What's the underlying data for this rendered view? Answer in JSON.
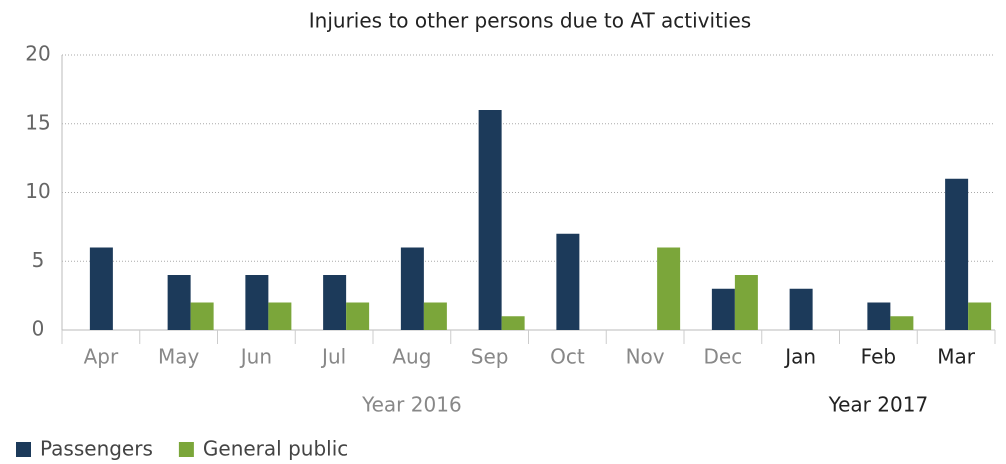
{
  "chart_data": {
    "type": "bar",
    "title": "Injuries to other persons due to AT activities",
    "categories": [
      "Apr",
      "May",
      "Jun",
      "Jul",
      "Aug",
      "Sep",
      "Oct",
      "Nov",
      "Dec",
      "Jan",
      "Feb",
      "Mar"
    ],
    "x_groups": [
      {
        "label": "Year 2016",
        "count": 9
      },
      {
        "label": "Year 2017",
        "count": 3
      }
    ],
    "series": [
      {
        "name": "Passengers",
        "color": "#1c3a5a",
        "values": [
          6,
          4,
          4,
          4,
          6,
          16,
          7,
          0,
          3,
          3,
          2,
          11
        ]
      },
      {
        "name": "General public",
        "color": "#7ba63a",
        "values": [
          0,
          2,
          2,
          2,
          2,
          1,
          0,
          6,
          4,
          0,
          1,
          2
        ]
      }
    ],
    "ylim": [
      0,
      20
    ],
    "yticks": [
      0,
      5,
      10,
      15,
      20
    ],
    "grid": true,
    "legend": "bottom-left"
  }
}
